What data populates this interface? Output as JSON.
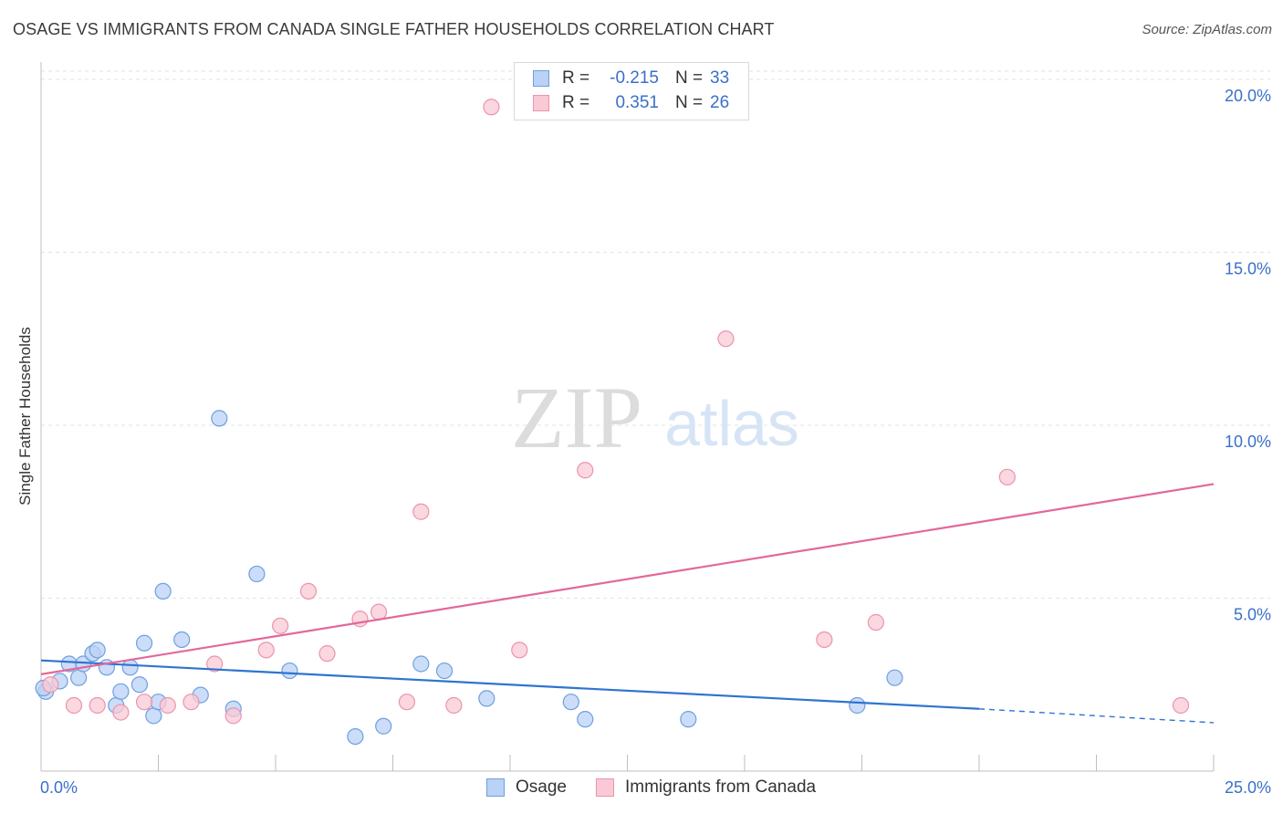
{
  "header": {
    "title": "OSAGE VS IMMIGRANTS FROM CANADA SINGLE FATHER HOUSEHOLDS CORRELATION CHART",
    "source": "Source: ZipAtlas.com"
  },
  "watermark": {
    "zip": "ZIP",
    "atlas": "atlas"
  },
  "colors": {
    "osage_fill": "#b9d2f5",
    "osage_stroke": "#6f9fe0",
    "osage_line": "#2f74d0",
    "canada_fill": "#f9c9d6",
    "canada_stroke": "#eb93ad",
    "canada_line": "#e2689a",
    "tick_label": "#3a6fc9",
    "grid": "#e3e3e3"
  },
  "legend": {
    "rows": [
      {
        "r_label": "R =",
        "r_value": "-0.215",
        "n_label": "N =",
        "n_value": "33"
      },
      {
        "r_label": "R =",
        "r_value": "0.351",
        "n_label": "N =",
        "n_value": "26"
      }
    ]
  },
  "chart_data": {
    "type": "scatter",
    "title": "OSAGE VS IMMIGRANTS FROM CANADA SINGLE FATHER HOUSEHOLDS CORRELATION CHART",
    "xlabel": "",
    "ylabel": "Single Father Households",
    "xlim": [
      0,
      25
    ],
    "ylim": [
      0,
      20.5
    ],
    "x_tick_labels": [
      "0.0%",
      "25.0%"
    ],
    "y_ticks": [
      5,
      10,
      15,
      20
    ],
    "y_tick_labels": [
      "5.0%",
      "10.0%",
      "15.0%",
      "20.0%"
    ],
    "grid": "horizontal dashed",
    "legend_position": "top-center and bottom",
    "series": [
      {
        "name": "Osage",
        "r": -0.215,
        "n": 33,
        "points": [
          [
            0.1,
            2.3
          ],
          [
            0.4,
            2.6
          ],
          [
            0.6,
            3.1
          ],
          [
            0.8,
            2.7
          ],
          [
            0.9,
            3.1
          ],
          [
            1.1,
            3.4
          ],
          [
            1.2,
            3.5
          ],
          [
            1.4,
            3.0
          ],
          [
            1.6,
            1.9
          ],
          [
            1.7,
            2.3
          ],
          [
            1.9,
            3.0
          ],
          [
            2.1,
            2.5
          ],
          [
            2.2,
            3.7
          ],
          [
            2.4,
            1.6
          ],
          [
            2.5,
            2.0
          ],
          [
            2.6,
            5.2
          ],
          [
            3.0,
            3.8
          ],
          [
            3.4,
            2.2
          ],
          [
            3.8,
            10.2
          ],
          [
            4.1,
            1.8
          ],
          [
            4.6,
            5.7
          ],
          [
            5.3,
            2.9
          ],
          [
            6.7,
            1.0
          ],
          [
            7.3,
            1.3
          ],
          [
            8.1,
            3.1
          ],
          [
            8.6,
            2.9
          ],
          [
            9.5,
            2.1
          ],
          [
            11.3,
            2.0
          ],
          [
            11.6,
            1.5
          ],
          [
            13.8,
            1.5
          ],
          [
            17.4,
            1.9
          ],
          [
            18.2,
            2.7
          ],
          [
            0.05,
            2.4
          ]
        ],
        "trend": {
          "x": [
            0,
            20
          ],
          "y": [
            3.2,
            1.8
          ],
          "dashed_to": [
            25,
            1.4
          ]
        }
      },
      {
        "name": "Immigrants from Canada",
        "r": 0.351,
        "n": 26,
        "points": [
          [
            0.2,
            2.5
          ],
          [
            0.7,
            1.9
          ],
          [
            1.2,
            1.9
          ],
          [
            1.7,
            1.7
          ],
          [
            2.2,
            2.0
          ],
          [
            2.7,
            1.9
          ],
          [
            3.2,
            2.0
          ],
          [
            3.7,
            3.1
          ],
          [
            4.1,
            1.6
          ],
          [
            4.8,
            3.5
          ],
          [
            5.1,
            4.2
          ],
          [
            5.7,
            5.2
          ],
          [
            6.1,
            3.4
          ],
          [
            6.8,
            4.4
          ],
          [
            7.2,
            4.6
          ],
          [
            7.8,
            2.0
          ],
          [
            8.1,
            7.5
          ],
          [
            8.8,
            1.9
          ],
          [
            9.6,
            19.2
          ],
          [
            10.2,
            3.5
          ],
          [
            11.6,
            8.7
          ],
          [
            14.6,
            12.5
          ],
          [
            16.7,
            3.8
          ],
          [
            17.8,
            4.3
          ],
          [
            20.6,
            8.5
          ],
          [
            24.3,
            1.9
          ]
        ],
        "trend": {
          "x": [
            0,
            25
          ],
          "y": [
            2.8,
            8.3
          ]
        }
      }
    ]
  },
  "bottom_legend": {
    "items": [
      {
        "label": "Osage"
      },
      {
        "label": "Immigrants from Canada"
      }
    ]
  }
}
